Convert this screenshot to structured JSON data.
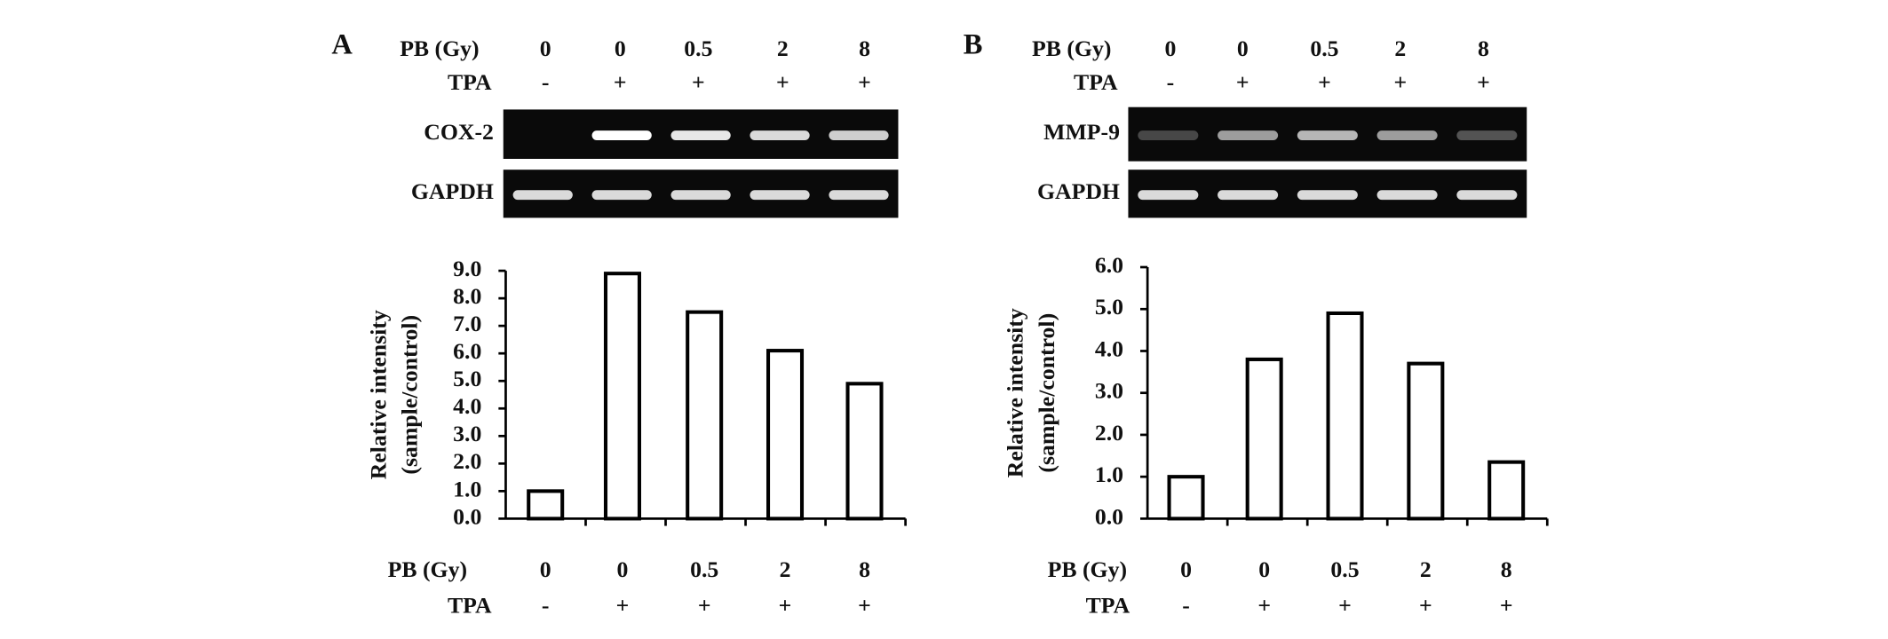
{
  "chart_data": [
    {
      "type": "bar",
      "panel_label": "A",
      "gel_labels": [
        "COX-2",
        "GAPDH"
      ],
      "y_label": [
        "Relative intensity",
        "(sample/control)"
      ],
      "category_label": "PB (Gy)",
      "categories": [
        "0",
        "0",
        "0.5",
        "2",
        "8"
      ],
      "treatment_label": "TPA",
      "treatment": [
        "-",
        "+",
        "+",
        "+",
        "+"
      ],
      "values": [
        1.0,
        8.9,
        7.5,
        6.1,
        4.9
      ],
      "color": "#ffffff",
      "ylim": [
        0,
        9
      ],
      "yticks": [
        {
          "value": 0,
          "label": "0.0"
        },
        {
          "value": 1,
          "label": "1.0"
        },
        {
          "value": 2,
          "label": "2.0"
        },
        {
          "value": 3,
          "label": "3.0"
        },
        {
          "value": 4,
          "label": "4.0"
        },
        {
          "value": 5,
          "label": "5.0"
        },
        {
          "value": 6,
          "label": "6.0"
        },
        {
          "value": 7,
          "label": "7.0"
        },
        {
          "value": 8,
          "label": "8.0"
        },
        {
          "value": 9,
          "label": "9.0"
        }
      ]
    },
    {
      "type": "bar",
      "panel_label": "B",
      "gel_labels": [
        "MMP-9",
        "GAPDH"
      ],
      "y_label": [
        "Relative intensity",
        "(sample/control)"
      ],
      "category_label": "PB (Gy)",
      "categories": [
        "0",
        "0",
        "0.5",
        "2",
        "8"
      ],
      "treatment_label": "TPA",
      "treatment": [
        "-",
        "+",
        "+",
        "+",
        "+"
      ],
      "values": [
        1.0,
        3.8,
        4.9,
        3.7,
        1.35
      ],
      "color": "#ffffff",
      "ylim": [
        0,
        6
      ],
      "yticks": [
        {
          "value": 0,
          "label": "0.0"
        },
        {
          "value": 1,
          "label": "1.0"
        },
        {
          "value": 2,
          "label": "2.0"
        },
        {
          "value": 3,
          "label": "3.0"
        },
        {
          "value": 4,
          "label": "4.0"
        },
        {
          "value": 5,
          "label": "5.0"
        },
        {
          "value": 6,
          "label": "6.0"
        }
      ]
    }
  ]
}
